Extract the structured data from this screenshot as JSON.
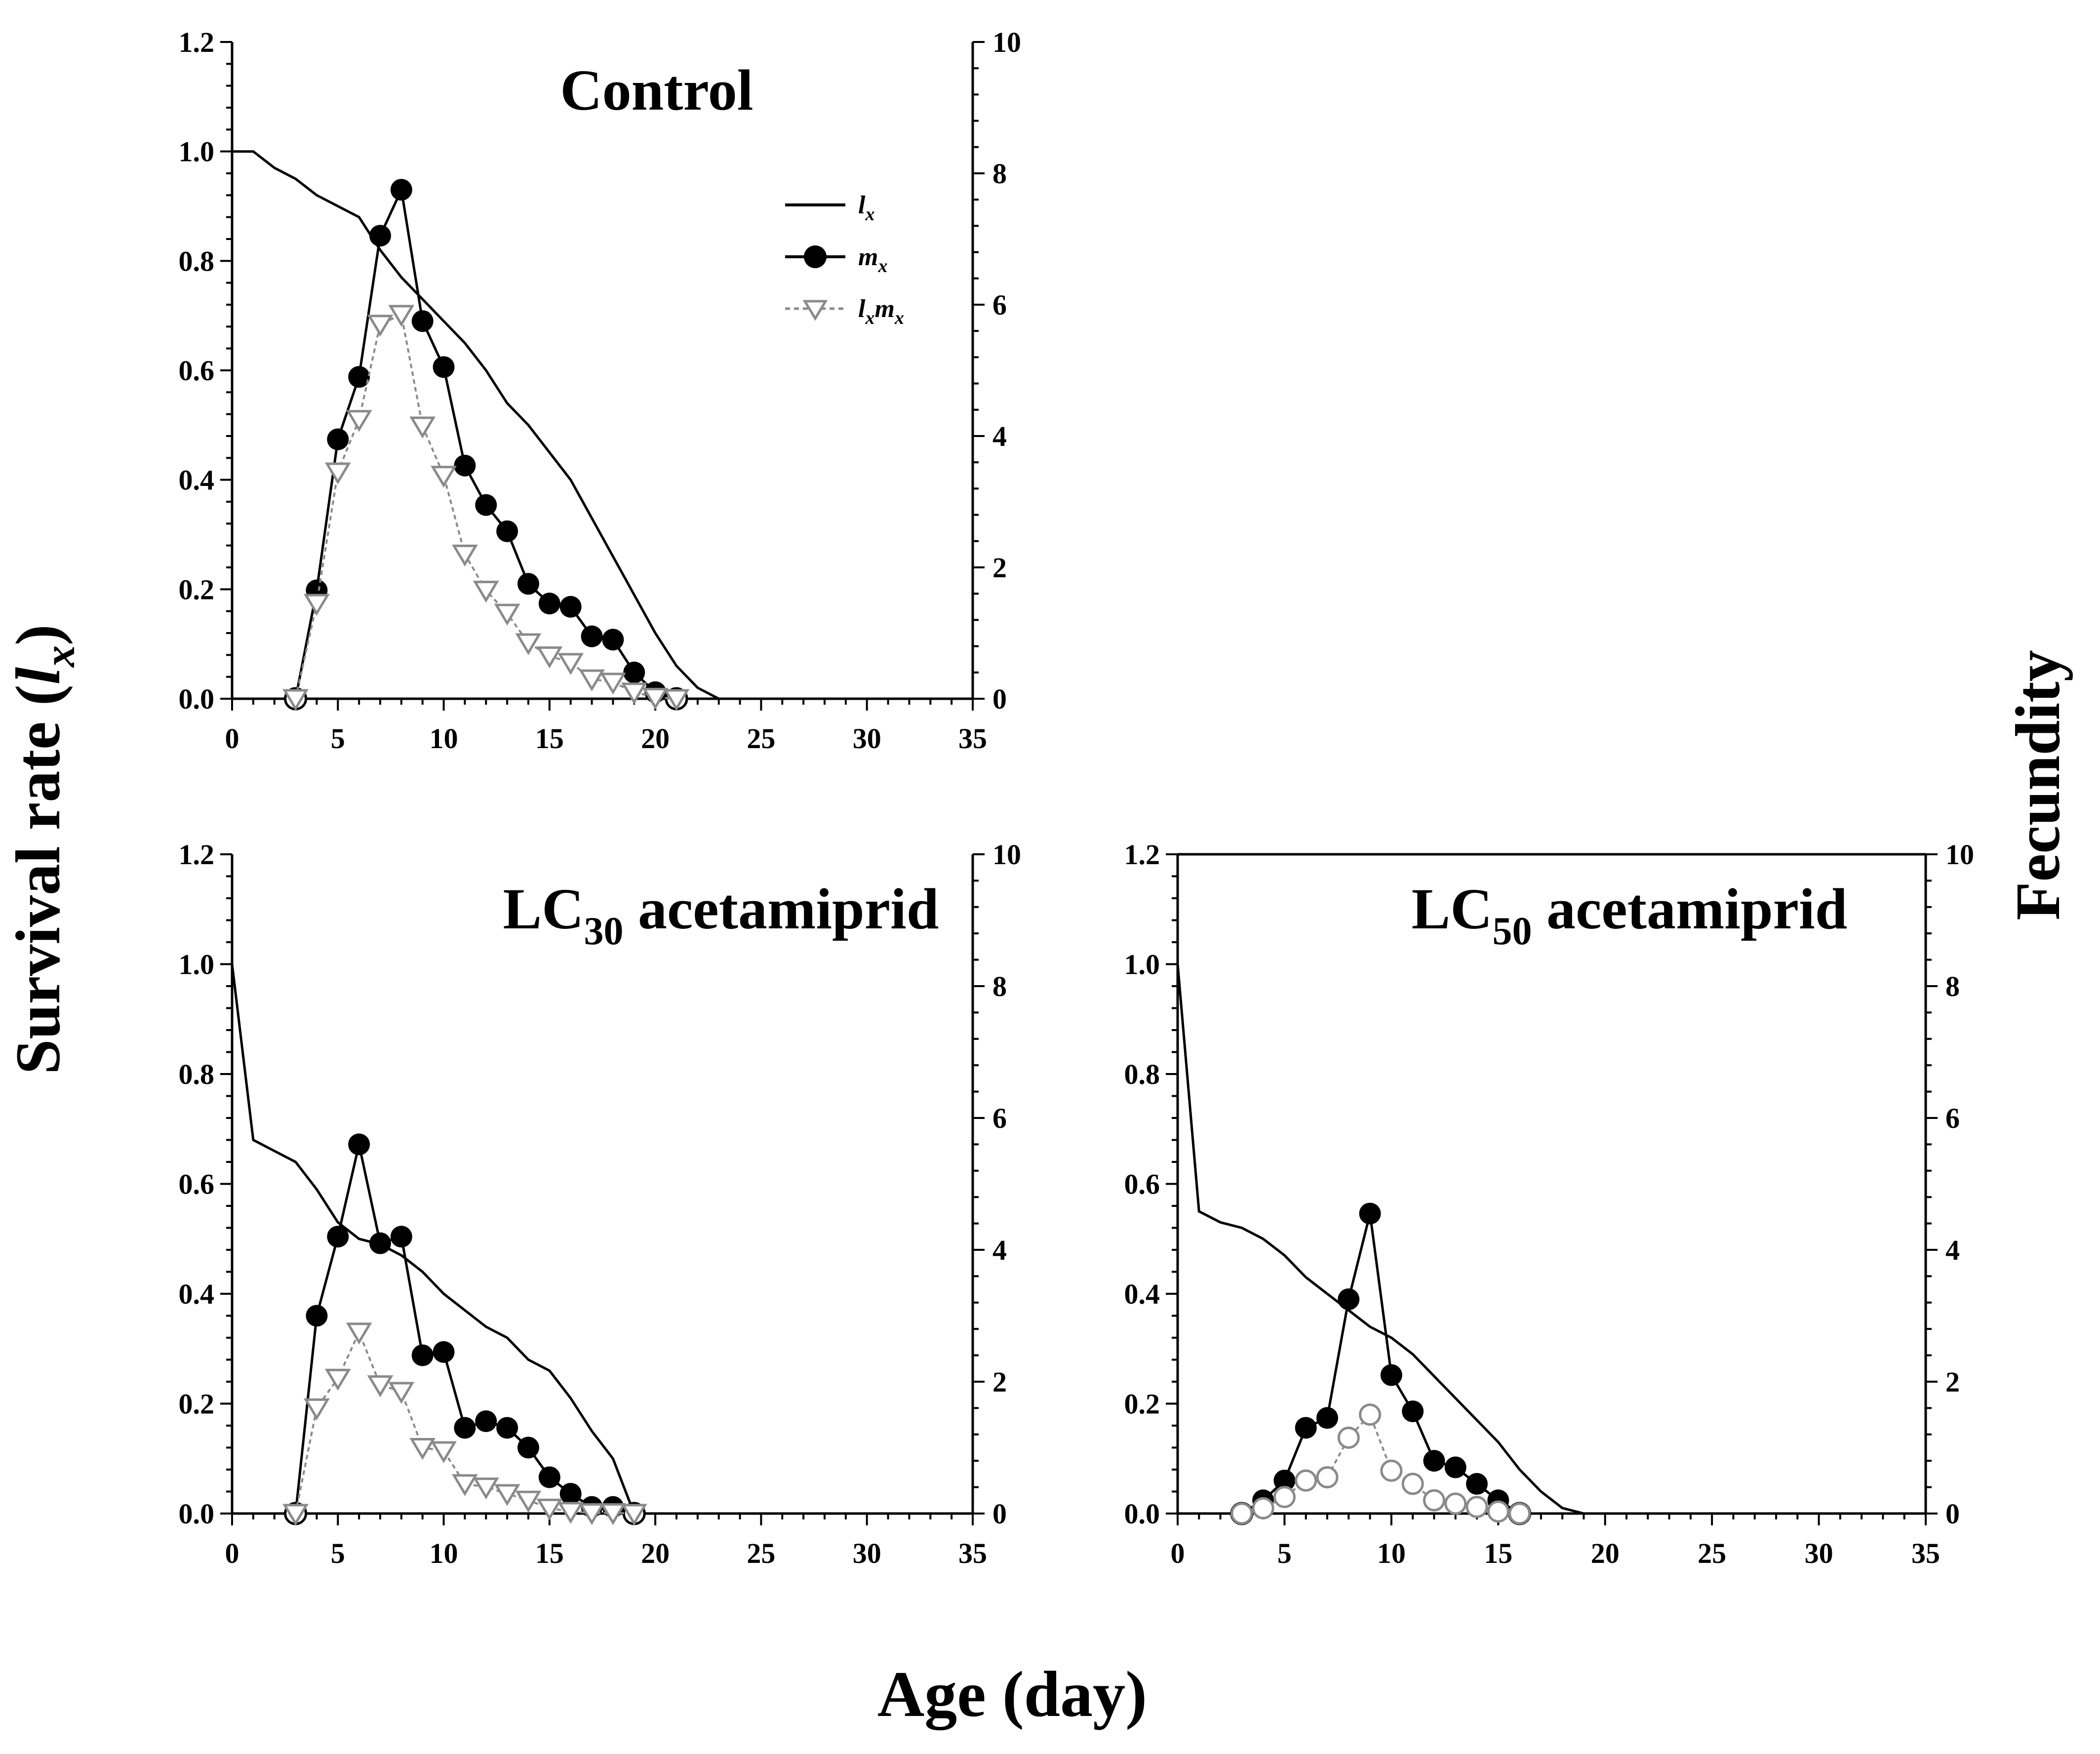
{
  "figure": {
    "y_label_main": "Survival rate (",
    "y_label_var": "l",
    "y_label_sub": "x",
    "y_label_end": ")",
    "y2_label": "Fecundity",
    "x_label": "Age (day)"
  },
  "legend": {
    "lx_main": "l",
    "lx_sub": "x",
    "mx_main": "m",
    "mx_sub": "x",
    "lxmx_main1": "l",
    "lxmx_sub1": "x",
    "lxmx_main2": "m",
    "lxmx_sub2": "x"
  },
  "colors": {
    "lx": "#000000",
    "mx": "#000000",
    "lxmx": "#8a8a8a",
    "axis": "#000000"
  },
  "chart_data": [
    {
      "id": "control",
      "type": "line",
      "title": "Control",
      "title_sub": "",
      "title_suffix": "",
      "xlabel": "Age (day)",
      "ylabel": "Survival rate (lx)",
      "y2label": "Fecundity",
      "xlim": [
        0,
        35
      ],
      "ylim": [
        0,
        1.2
      ],
      "y2lim": [
        0,
        10
      ],
      "x_ticks": [
        "0",
        "5",
        "10",
        "15",
        "20",
        "25",
        "30",
        "35"
      ],
      "y_ticks": [
        "0.0",
        "0.2",
        "0.4",
        "0.6",
        "0.8",
        "1.0",
        "1.2"
      ],
      "y2_ticks": [
        "0",
        "2",
        "4",
        "6",
        "8",
        "10"
      ],
      "lxmx_marker": "triangle",
      "series": [
        {
          "name": "lx",
          "axis": "left",
          "x": [
            0,
            1,
            2,
            3,
            4,
            5,
            6,
            7,
            8,
            9,
            10,
            11,
            12,
            13,
            14,
            15,
            16,
            17,
            18,
            19,
            20,
            21,
            22,
            23,
            24
          ],
          "y": [
            1.0,
            1.0,
            0.97,
            0.95,
            0.92,
            0.9,
            0.88,
            0.82,
            0.77,
            0.73,
            0.69,
            0.65,
            0.6,
            0.54,
            0.5,
            0.45,
            0.4,
            0.33,
            0.26,
            0.19,
            0.12,
            0.06,
            0.02,
            0.0,
            0.0
          ]
        },
        {
          "name": "mx",
          "axis": "right",
          "x": [
            3,
            4,
            5,
            6,
            7,
            8,
            9,
            10,
            11,
            12,
            13,
            14,
            15,
            16,
            17,
            18,
            19,
            20,
            21
          ],
          "y": [
            0,
            1.65,
            3.95,
            4.9,
            7.05,
            7.75,
            5.75,
            5.05,
            3.55,
            2.95,
            2.55,
            1.75,
            1.45,
            1.4,
            0.95,
            0.9,
            0.4,
            0.1,
            0
          ]
        },
        {
          "name": "lxmx",
          "axis": "right",
          "x": [
            3,
            4,
            5,
            6,
            7,
            8,
            9,
            10,
            11,
            12,
            13,
            14,
            15,
            16,
            17,
            18,
            19,
            20,
            21
          ],
          "y": [
            0,
            1.45,
            3.45,
            4.25,
            5.7,
            5.85,
            4.15,
            3.4,
            2.2,
            1.65,
            1.3,
            0.85,
            0.65,
            0.55,
            0.3,
            0.25,
            0.1,
            0.02,
            0
          ]
        }
      ]
    },
    {
      "id": "lc30",
      "type": "line",
      "title": "LC",
      "title_sub": "30",
      "title_suffix": " acetamiprid",
      "xlabel": "Age (day)",
      "ylabel": "Survival rate (lx)",
      "y2label": "Fecundity",
      "xlim": [
        0,
        35
      ],
      "ylim": [
        0,
        1.2
      ],
      "y2lim": [
        0,
        10
      ],
      "x_ticks": [
        "0",
        "5",
        "10",
        "15",
        "20",
        "25",
        "30",
        "35"
      ],
      "y_ticks": [
        "0.0",
        "0.2",
        "0.4",
        "0.6",
        "0.8",
        "1.0",
        "1.2"
      ],
      "y2_ticks": [
        "0",
        "2",
        "4",
        "6",
        "8",
        "10"
      ],
      "lxmx_marker": "triangle",
      "series": [
        {
          "name": "lx",
          "axis": "left",
          "x": [
            0,
            1,
            2,
            3,
            4,
            5,
            6,
            7,
            8,
            9,
            10,
            11,
            12,
            13,
            14,
            15,
            16,
            17,
            18,
            19,
            19.5
          ],
          "y": [
            1.0,
            0.68,
            0.66,
            0.64,
            0.59,
            0.53,
            0.5,
            0.49,
            0.47,
            0.44,
            0.4,
            0.37,
            0.34,
            0.32,
            0.28,
            0.26,
            0.21,
            0.15,
            0.1,
            0.0,
            0.0
          ]
        },
        {
          "name": "mx",
          "axis": "right",
          "x": [
            3,
            4,
            5,
            6,
            7,
            8,
            9,
            10,
            11,
            12,
            13,
            14,
            15,
            16,
            17,
            18,
            19
          ],
          "y": [
            0,
            3.0,
            4.2,
            5.6,
            4.1,
            4.2,
            2.4,
            2.45,
            1.3,
            1.4,
            1.3,
            1.0,
            0.55,
            0.3,
            0.1,
            0.1,
            0
          ]
        },
        {
          "name": "lxmx",
          "axis": "right",
          "x": [
            3,
            4,
            5,
            6,
            7,
            8,
            9,
            10,
            11,
            12,
            13,
            14,
            15,
            16,
            17,
            18,
            19
          ],
          "y": [
            0,
            1.6,
            2.05,
            2.75,
            1.95,
            1.85,
            1.0,
            0.95,
            0.45,
            0.4,
            0.3,
            0.2,
            0.08,
            0.03,
            0.01,
            0.01,
            0
          ]
        }
      ]
    },
    {
      "id": "lc50",
      "type": "line",
      "title": "LC",
      "title_sub": "50",
      "title_suffix": " acetamiprid",
      "xlabel": "Age (day)",
      "ylabel": "Survival rate (lx)",
      "y2label": "Fecundity",
      "xlim": [
        0,
        35
      ],
      "ylim": [
        0,
        1.2
      ],
      "y2lim": [
        0,
        10
      ],
      "x_ticks": [
        "0",
        "5",
        "10",
        "15",
        "20",
        "25",
        "30",
        "35"
      ],
      "y_ticks": [
        "0.0",
        "0.2",
        "0.4",
        "0.6",
        "0.8",
        "1.0",
        "1.2"
      ],
      "y2_ticks": [
        "0",
        "2",
        "4",
        "6",
        "8",
        "10"
      ],
      "lxmx_marker": "circle",
      "series": [
        {
          "name": "lx",
          "axis": "left",
          "x": [
            0,
            1,
            2,
            3,
            4,
            5,
            6,
            7,
            8,
            9,
            10,
            11,
            12,
            13,
            14,
            15,
            16,
            17,
            18,
            19
          ],
          "y": [
            1.0,
            0.55,
            0.53,
            0.52,
            0.5,
            0.47,
            0.43,
            0.4,
            0.37,
            0.34,
            0.32,
            0.29,
            0.25,
            0.21,
            0.17,
            0.13,
            0.08,
            0.04,
            0.01,
            0.0
          ]
        },
        {
          "name": "mx",
          "axis": "right",
          "x": [
            3,
            4,
            5,
            6,
            7,
            8,
            9,
            10,
            11,
            12,
            13,
            14,
            15,
            16
          ],
          "y": [
            0,
            0.2,
            0.5,
            1.3,
            1.45,
            3.25,
            4.55,
            2.1,
            1.55,
            0.8,
            0.7,
            0.45,
            0.2,
            0
          ]
        },
        {
          "name": "lxmx",
          "axis": "right",
          "x": [
            3,
            4,
            5,
            6,
            7,
            8,
            9,
            10,
            11,
            12,
            13,
            14,
            15,
            16
          ],
          "y": [
            0,
            0.08,
            0.25,
            0.5,
            0.55,
            1.15,
            1.5,
            0.65,
            0.45,
            0.2,
            0.15,
            0.1,
            0.03,
            0
          ]
        }
      ]
    }
  ]
}
